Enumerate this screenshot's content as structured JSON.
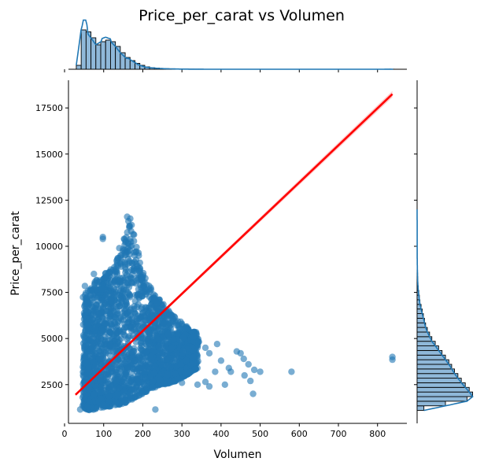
{
  "chart_data": {
    "type": "scatter",
    "title": "Price_per_carat vs Volumen",
    "xlabel": "Volumen",
    "ylabel": "Price_per_carat",
    "xlim": [
      10,
      875
    ],
    "ylim": [
      400,
      19000
    ],
    "xticks": [
      0,
      100,
      200,
      300,
      400,
      500,
      600,
      700,
      800
    ],
    "yticks": [
      2500,
      5000,
      7500,
      10000,
      12500,
      15000,
      17500
    ],
    "grid": false,
    "colors": {
      "points": "#1f77b4",
      "regression": "#ff0000",
      "hist_fill": "#8fb8d9",
      "kde": "#1f77b4"
    },
    "regression_line": {
      "x": [
        28,
        838
      ],
      "y": [
        1950,
        18250
      ]
    },
    "scatter_density": [
      {
        "x": 50,
        "y_low": 1200,
        "y_high": 7400
      },
      {
        "x": 65,
        "y_low": 1100,
        "y_high": 7700
      },
      {
        "x": 85,
        "y_low": 1200,
        "y_high": 8300
      },
      {
        "x": 110,
        "y_low": 1300,
        "y_high": 8600
      },
      {
        "x": 135,
        "y_low": 1400,
        "y_high": 9300
      },
      {
        "x": 155,
        "y_low": 1500,
        "y_high": 10600
      },
      {
        "x": 165,
        "y_low": 1600,
        "y_high": 11600
      },
      {
        "x": 180,
        "y_low": 1800,
        "y_high": 10600
      },
      {
        "x": 200,
        "y_low": 2000,
        "y_high": 8600
      },
      {
        "x": 225,
        "y_low": 2300,
        "y_high": 7600
      },
      {
        "x": 255,
        "y_low": 2500,
        "y_high": 6800
      },
      {
        "x": 285,
        "y_low": 2700,
        "y_high": 6100
      },
      {
        "x": 310,
        "y_low": 3000,
        "y_high": 5700
      },
      {
        "x": 340,
        "y_low": 3400,
        "y_high": 5300
      }
    ],
    "outliers": [
      {
        "x": 52,
        "y": 7850
      },
      {
        "x": 75,
        "y": 8500
      },
      {
        "x": 98,
        "y": 10500
      },
      {
        "x": 98,
        "y": 10400
      },
      {
        "x": 140,
        "y": 9900
      },
      {
        "x": 152,
        "y": 10400
      },
      {
        "x": 160,
        "y": 11600
      },
      {
        "x": 168,
        "y": 11500
      },
      {
        "x": 40,
        "y": 1150
      },
      {
        "x": 232,
        "y": 1150
      },
      {
        "x": 300,
        "y": 2600
      },
      {
        "x": 340,
        "y": 2500
      },
      {
        "x": 360,
        "y": 2650
      },
      {
        "x": 370,
        "y": 2400
      },
      {
        "x": 385,
        "y": 3200
      },
      {
        "x": 400,
        "y": 3800
      },
      {
        "x": 410,
        "y": 2500
      },
      {
        "x": 420,
        "y": 3400
      },
      {
        "x": 425,
        "y": 3200
      },
      {
        "x": 450,
        "y": 4200
      },
      {
        "x": 458,
        "y": 3900
      },
      {
        "x": 460,
        "y": 3000
      },
      {
        "x": 470,
        "y": 3600
      },
      {
        "x": 475,
        "y": 2700
      },
      {
        "x": 482,
        "y": 2000
      },
      {
        "x": 485,
        "y": 3300
      },
      {
        "x": 500,
        "y": 3200
      },
      {
        "x": 580,
        "y": 3200
      },
      {
        "x": 838,
        "y": 4000
      },
      {
        "x": 838,
        "y": 3850
      },
      {
        "x": 360,
        "y": 4500
      },
      {
        "x": 390,
        "y": 4700
      },
      {
        "x": 330,
        "y": 5100
      },
      {
        "x": 300,
        "y": 5800
      },
      {
        "x": 370,
        "y": 4200
      },
      {
        "x": 440,
        "y": 4300
      }
    ],
    "x_marginal_histogram": {
      "bin_width": 12.5,
      "bin_start": 30,
      "relative_heights": [
        0.1,
        1.0,
        0.95,
        0.8,
        0.62,
        0.7,
        0.74,
        0.7,
        0.58,
        0.42,
        0.3,
        0.22,
        0.15,
        0.1,
        0.06,
        0.04,
        0.03,
        0.02,
        0.015,
        0.01,
        0.008,
        0.005,
        0.004,
        0.003,
        0.002,
        0.002,
        0.001,
        0.001,
        0.001,
        0.001,
        0.001,
        0.001,
        0.001,
        0.001,
        0.001,
        0.001,
        0.001,
        0.001,
        0.001,
        0.001,
        0.001,
        0.001,
        0.001,
        0.001,
        0.001,
        0.001,
        0.001,
        0.001,
        0.001,
        0.001,
        0.001,
        0.001,
        0.001,
        0.001,
        0.001,
        0.001,
        0.001,
        0.001,
        0.001,
        0.001,
        0.001,
        0.001,
        0.001,
        0.001,
        0.002
      ]
    },
    "y_marginal_histogram": {
      "bin_width": 250,
      "bin_start": 1100,
      "relative_heights": [
        0.12,
        0.5,
        0.88,
        0.98,
        0.92,
        0.85,
        0.78,
        0.72,
        0.66,
        0.61,
        0.56,
        0.5,
        0.44,
        0.38,
        0.32,
        0.26,
        0.22,
        0.18,
        0.15,
        0.13,
        0.11,
        0.09,
        0.07,
        0.05,
        0.04,
        0.03,
        0.02,
        0.015,
        0.01,
        0.008,
        0.006,
        0.004,
        0.003,
        0.002,
        0.002,
        0.001,
        0.001,
        0.001,
        0.001,
        0.001,
        0.001,
        0.001
      ]
    }
  }
}
